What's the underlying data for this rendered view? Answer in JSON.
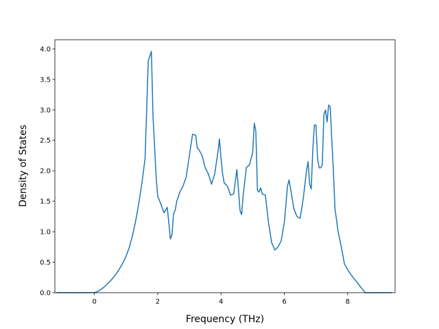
{
  "chart_data": {
    "type": "line",
    "title": "",
    "xlabel": "Frequency (THz)",
    "ylabel": "Density of States",
    "xlim": [
      -1.25,
      9.5
    ],
    "ylim": [
      0,
      4.15
    ],
    "xticks": [
      0,
      2,
      4,
      6,
      8
    ],
    "xtick_labels": [
      "0",
      "2",
      "4",
      "6",
      "8"
    ],
    "yticks": [
      0.0,
      0.5,
      1.0,
      1.5,
      2.0,
      2.5,
      3.0,
      3.5,
      4.0
    ],
    "ytick_labels": [
      "0.0",
      "0.5",
      "1.0",
      "1.5",
      "2.0",
      "2.5",
      "3.0",
      "3.5",
      "4.0"
    ],
    "grid": false,
    "legend": "none",
    "series": [
      {
        "color": "#1f77b4",
        "x": [
          -1.2,
          -0.5,
          0.0,
          0.1,
          0.2,
          0.3,
          0.4,
          0.5,
          0.6,
          0.7,
          0.8,
          0.9,
          1.0,
          1.1,
          1.2,
          1.3,
          1.4,
          1.5,
          1.6,
          1.7,
          1.8,
          1.85,
          1.9,
          1.95,
          2.0,
          2.05,
          2.1,
          2.2,
          2.3,
          2.35,
          2.4,
          2.45,
          2.5,
          2.55,
          2.6,
          2.7,
          2.8,
          2.9,
          3.0,
          3.1,
          3.2,
          3.25,
          3.3,
          3.4,
          3.5,
          3.6,
          3.7,
          3.8,
          3.9,
          3.95,
          4.0,
          4.05,
          4.1,
          4.2,
          4.3,
          4.4,
          4.5,
          4.55,
          4.6,
          4.65,
          4.7,
          4.8,
          4.9,
          5.0,
          5.05,
          5.1,
          5.15,
          5.2,
          5.25,
          5.3,
          5.4,
          5.5,
          5.6,
          5.7,
          5.8,
          5.9,
          6.0,
          6.1,
          6.15,
          6.2,
          6.3,
          6.4,
          6.5,
          6.6,
          6.7,
          6.75,
          6.8,
          6.85,
          6.9,
          6.95,
          7.0,
          7.05,
          7.1,
          7.15,
          7.2,
          7.25,
          7.3,
          7.35,
          7.4,
          7.45,
          7.5,
          7.55,
          7.6,
          7.7,
          7.8,
          7.9,
          8.0,
          8.1,
          8.2,
          8.3,
          8.4,
          8.5,
          8.55,
          8.7,
          9.0,
          9.4
        ],
        "y": [
          0.0,
          0.0,
          0.0,
          0.02,
          0.05,
          0.09,
          0.14,
          0.19,
          0.25,
          0.32,
          0.4,
          0.49,
          0.6,
          0.74,
          0.93,
          1.17,
          1.46,
          1.8,
          2.2,
          3.8,
          3.96,
          2.9,
          2.4,
          1.9,
          1.58,
          1.52,
          1.45,
          1.31,
          1.4,
          1.15,
          0.88,
          0.95,
          1.3,
          1.35,
          1.5,
          1.65,
          1.75,
          1.9,
          2.25,
          2.6,
          2.58,
          2.37,
          2.35,
          2.25,
          2.05,
          1.95,
          1.78,
          1.95,
          2.3,
          2.52,
          2.2,
          1.95,
          1.8,
          1.75,
          1.6,
          1.62,
          2.02,
          1.7,
          1.35,
          1.28,
          1.6,
          2.05,
          2.1,
          2.3,
          2.78,
          2.65,
          1.68,
          1.65,
          1.72,
          1.62,
          1.6,
          1.15,
          0.82,
          0.7,
          0.75,
          0.85,
          1.15,
          1.75,
          1.85,
          1.7,
          1.38,
          1.25,
          1.22,
          1.55,
          2.0,
          2.15,
          1.78,
          1.7,
          2.35,
          2.75,
          2.75,
          2.2,
          2.05,
          2.05,
          2.1,
          2.92,
          3.0,
          2.8,
          3.08,
          3.05,
          2.5,
          2.0,
          1.38,
          1.0,
          0.75,
          0.47,
          0.38,
          0.3,
          0.23,
          0.17,
          0.1,
          0.04,
          0.0,
          0.0,
          0.0,
          0.0
        ]
      }
    ]
  }
}
